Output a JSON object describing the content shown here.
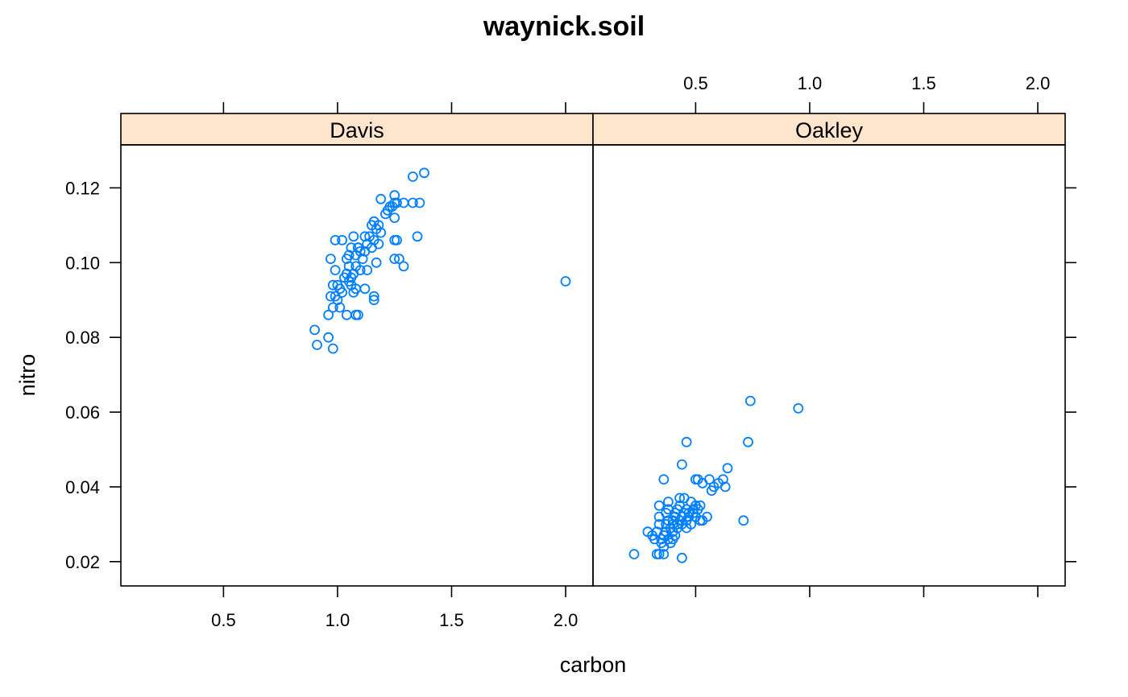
{
  "chart_data": {
    "type": "scatter",
    "title": "waynick.soil",
    "xlabel": "carbon",
    "ylabel": "nitro",
    "xlim": [
      0.05,
      2.12
    ],
    "ylim": [
      0.0135,
      0.1315
    ],
    "x_ticks": [
      0.5,
      1.0,
      1.5,
      2.0
    ],
    "x_tick_labels": [
      "0.5",
      "1.0",
      "1.5",
      "2.0"
    ],
    "y_ticks": [
      0.02,
      0.04,
      0.06,
      0.08,
      0.1,
      0.12
    ],
    "y_tick_labels": [
      "0.02",
      "0.04",
      "0.06",
      "0.08",
      "0.10",
      "0.12"
    ],
    "point_color": "#0080ff",
    "strip_color": "#ffe5cc",
    "panels": [
      {
        "name": "Davis",
        "points": [
          [
            0.9,
            0.082
          ],
          [
            0.91,
            0.078
          ],
          [
            0.96,
            0.08
          ],
          [
            0.98,
            0.077
          ],
          [
            0.96,
            0.086
          ],
          [
            0.98,
            0.088
          ],
          [
            1.01,
            0.088
          ],
          [
            1.04,
            0.086
          ],
          [
            1.08,
            0.086
          ],
          [
            1.09,
            0.086
          ],
          [
            0.97,
            0.091
          ],
          [
            0.99,
            0.091
          ],
          [
            1.0,
            0.09
          ],
          [
            1.01,
            0.093
          ],
          [
            0.98,
            0.094
          ],
          [
            1.0,
            0.094
          ],
          [
            1.02,
            0.092
          ],
          [
            1.05,
            0.095
          ],
          [
            1.06,
            0.094
          ],
          [
            1.07,
            0.092
          ],
          [
            1.08,
            0.093
          ],
          [
            1.03,
            0.096
          ],
          [
            1.04,
            0.097
          ],
          [
            1.05,
            0.099
          ],
          [
            1.06,
            0.096
          ],
          [
            1.07,
            0.097
          ],
          [
            1.08,
            0.099
          ],
          [
            1.1,
            0.098
          ],
          [
            1.12,
            0.093
          ],
          [
            1.13,
            0.098
          ],
          [
            1.04,
            0.101
          ],
          [
            1.05,
            0.102
          ],
          [
            1.06,
            0.104
          ],
          [
            1.08,
            0.102
          ],
          [
            1.09,
            0.104
          ],
          [
            1.1,
            0.103
          ],
          [
            1.11,
            0.101
          ],
          [
            1.12,
            0.103
          ],
          [
            1.13,
            0.105
          ],
          [
            1.15,
            0.104
          ],
          [
            1.17,
            0.1
          ],
          [
            1.16,
            0.106
          ],
          [
            1.18,
            0.105
          ],
          [
            0.97,
            0.101
          ],
          [
            0.99,
            0.098
          ],
          [
            0.99,
            0.106
          ],
          [
            1.02,
            0.106
          ],
          [
            1.07,
            0.107
          ],
          [
            1.09,
            0.104
          ],
          [
            1.12,
            0.107
          ],
          [
            1.14,
            0.107
          ],
          [
            1.15,
            0.11
          ],
          [
            1.16,
            0.111
          ],
          [
            1.17,
            0.109
          ],
          [
            1.19,
            0.108
          ],
          [
            1.18,
            0.11
          ],
          [
            1.21,
            0.113
          ],
          [
            1.22,
            0.114
          ],
          [
            1.23,
            0.115
          ],
          [
            1.24,
            0.115
          ],
          [
            1.25,
            0.116
          ],
          [
            1.25,
            0.118
          ],
          [
            1.26,
            0.116
          ],
          [
            1.19,
            0.117
          ],
          [
            1.25,
            0.112
          ],
          [
            1.25,
            0.106
          ],
          [
            1.26,
            0.106
          ],
          [
            1.25,
            0.101
          ],
          [
            1.27,
            0.101
          ],
          [
            1.29,
            0.099
          ],
          [
            1.16,
            0.09
          ],
          [
            1.16,
            0.091
          ],
          [
            1.29,
            0.116
          ],
          [
            1.33,
            0.116
          ],
          [
            1.33,
            0.123
          ],
          [
            1.36,
            0.116
          ],
          [
            1.35,
            0.107
          ],
          [
            1.38,
            0.124
          ],
          [
            2.0,
            0.095
          ]
        ]
      },
      {
        "name": "Oakley",
        "points": [
          [
            0.23,
            0.022
          ],
          [
            0.29,
            0.028
          ],
          [
            0.31,
            0.027
          ],
          [
            0.32,
            0.026
          ],
          [
            0.33,
            0.022
          ],
          [
            0.34,
            0.022
          ],
          [
            0.36,
            0.022
          ],
          [
            0.33,
            0.028
          ],
          [
            0.34,
            0.03
          ],
          [
            0.34,
            0.032
          ],
          [
            0.34,
            0.035
          ],
          [
            0.35,
            0.025
          ],
          [
            0.36,
            0.027
          ],
          [
            0.37,
            0.028
          ],
          [
            0.37,
            0.03
          ],
          [
            0.37,
            0.033
          ],
          [
            0.38,
            0.036
          ],
          [
            0.38,
            0.034
          ],
          [
            0.38,
            0.026
          ],
          [
            0.39,
            0.025
          ],
          [
            0.39,
            0.029
          ],
          [
            0.4,
            0.028
          ],
          [
            0.4,
            0.03
          ],
          [
            0.4,
            0.031
          ],
          [
            0.41,
            0.027
          ],
          [
            0.41,
            0.032
          ],
          [
            0.41,
            0.033
          ],
          [
            0.42,
            0.029
          ],
          [
            0.42,
            0.03
          ],
          [
            0.42,
            0.034
          ],
          [
            0.43,
            0.031
          ],
          [
            0.43,
            0.035
          ],
          [
            0.43,
            0.037
          ],
          [
            0.44,
            0.032
          ],
          [
            0.44,
            0.03
          ],
          [
            0.45,
            0.033
          ],
          [
            0.45,
            0.037
          ],
          [
            0.46,
            0.031
          ],
          [
            0.46,
            0.029
          ],
          [
            0.46,
            0.034
          ],
          [
            0.47,
            0.032
          ],
          [
            0.47,
            0.033
          ],
          [
            0.48,
            0.03
          ],
          [
            0.48,
            0.036
          ],
          [
            0.49,
            0.033
          ],
          [
            0.49,
            0.034
          ],
          [
            0.5,
            0.032
          ],
          [
            0.5,
            0.035
          ],
          [
            0.51,
            0.034
          ],
          [
            0.52,
            0.035
          ],
          [
            0.52,
            0.031
          ],
          [
            0.53,
            0.031
          ],
          [
            0.5,
            0.042
          ],
          [
            0.51,
            0.042
          ],
          [
            0.53,
            0.041
          ],
          [
            0.55,
            0.032
          ],
          [
            0.56,
            0.042
          ],
          [
            0.57,
            0.039
          ],
          [
            0.58,
            0.04
          ],
          [
            0.6,
            0.041
          ],
          [
            0.62,
            0.042
          ],
          [
            0.63,
            0.04
          ],
          [
            0.64,
            0.045
          ],
          [
            0.71,
            0.031
          ],
          [
            0.73,
            0.052
          ],
          [
            0.74,
            0.063
          ],
          [
            0.95,
            0.061
          ],
          [
            0.36,
            0.042
          ],
          [
            0.44,
            0.046
          ],
          [
            0.46,
            0.052
          ],
          [
            0.44,
            0.021
          ],
          [
            0.36,
            0.024
          ],
          [
            0.4,
            0.026
          ],
          [
            0.38,
            0.031
          ],
          [
            0.35,
            0.026
          ]
        ]
      }
    ]
  }
}
